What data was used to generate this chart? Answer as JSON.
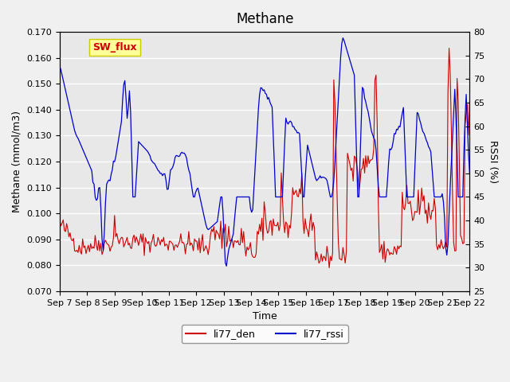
{
  "title": "Methane",
  "xlabel": "Time",
  "ylabel_left": "Methane (mmol/m3)",
  "ylabel_right": "RSSI (%)",
  "annotation": "SW_flux",
  "ylim_left": [
    0.07,
    0.17
  ],
  "ylim_right": [
    25,
    80
  ],
  "yticks_left": [
    0.07,
    0.08,
    0.09,
    0.1,
    0.11,
    0.12,
    0.13,
    0.14,
    0.15,
    0.16,
    0.17
  ],
  "yticks_right": [
    25,
    30,
    35,
    40,
    45,
    50,
    55,
    60,
    65,
    70,
    75,
    80
  ],
  "xtick_labels": [
    "Sep 7",
    "Sep 8",
    "Sep 9",
    "Sep 10",
    "Sep 11",
    "Sep 12",
    "Sep 13",
    "Sep 14",
    "Sep 15",
    "Sep 16",
    "Sep 17",
    "Sep 18",
    "Sep 19",
    "Sep 20",
    "Sep 21",
    "Sep 22"
  ],
  "color_red": "#cc0000",
  "color_blue": "#0000cc",
  "background_color": "#e8e8e8",
  "grid_color": "#ffffff",
  "annotation_bg": "#ffff99",
  "annotation_border": "#cccc00",
  "annotation_text_color": "#cc0000",
  "legend_red": "li77_den",
  "legend_blue": "li77_rssi",
  "num_points": 360
}
